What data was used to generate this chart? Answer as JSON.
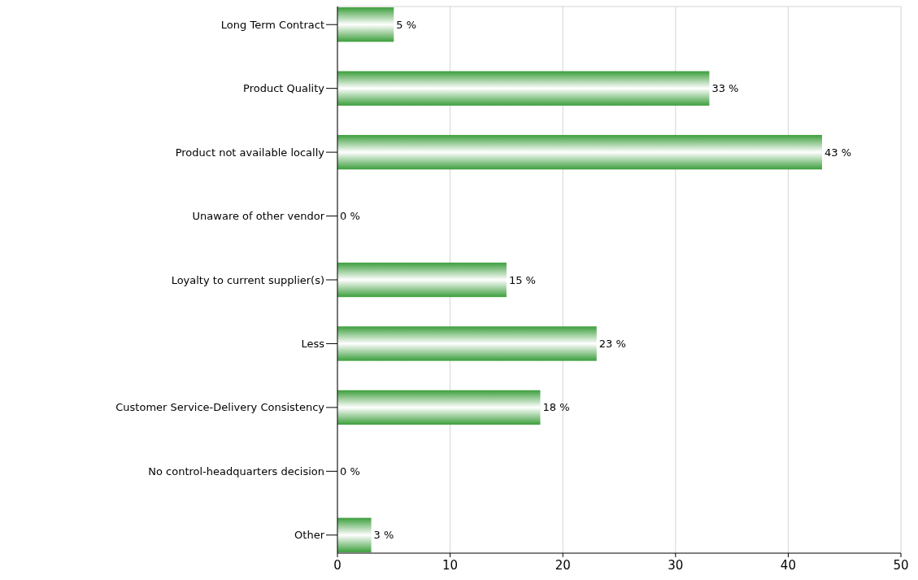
{
  "chart_data": {
    "type": "bar",
    "orientation": "horizontal",
    "categories": [
      "Long Term Contract",
      "Product Quality",
      "Product not available locally",
      "Unaware of other vendor",
      "Loyalty to current supplier(s)",
      "Less",
      "Customer Service-Delivery Consistency",
      "No control-headquarters decision",
      "Other"
    ],
    "values": [
      5,
      33,
      43,
      0,
      15,
      23,
      18,
      0,
      3
    ],
    "value_labels": [
      "5 %",
      "33 %",
      "43 %",
      "0 %",
      "15 %",
      "23 %",
      "18 %",
      "0 %",
      "3 %"
    ],
    "color": "#3c9e3c",
    "xlim": [
      0,
      50
    ],
    "xticks": [
      0,
      10,
      20,
      30,
      40,
      50
    ],
    "grid": "x"
  }
}
